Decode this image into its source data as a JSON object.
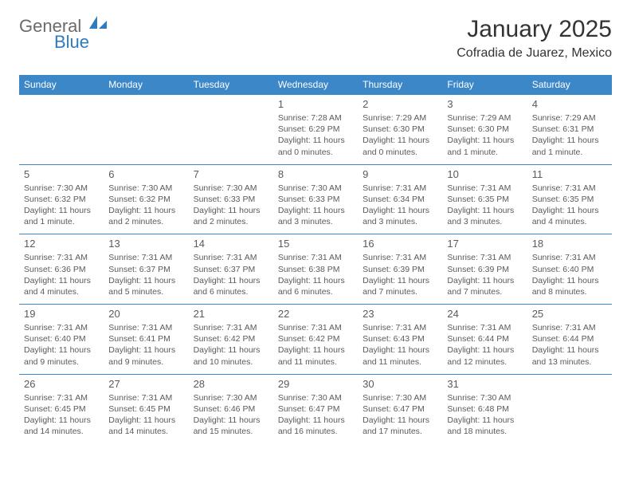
{
  "logo": {
    "part1": "General",
    "part2": "Blue"
  },
  "title": "January 2025",
  "location": "Cofradia de Juarez, Mexico",
  "colors": {
    "header_bg": "#3b87c8",
    "header_text": "#ffffff",
    "border": "#3b87c8",
    "text": "#5a5a5a",
    "logo_gray": "#6b6b6b",
    "logo_blue": "#2f7bbf",
    "background": "#ffffff"
  },
  "dayHeaders": [
    "Sunday",
    "Monday",
    "Tuesday",
    "Wednesday",
    "Thursday",
    "Friday",
    "Saturday"
  ],
  "weeks": [
    [
      null,
      null,
      null,
      {
        "n": "1",
        "sr": "7:28 AM",
        "ss": "6:29 PM",
        "dl": "11 hours and 0 minutes."
      },
      {
        "n": "2",
        "sr": "7:29 AM",
        "ss": "6:30 PM",
        "dl": "11 hours and 0 minutes."
      },
      {
        "n": "3",
        "sr": "7:29 AM",
        "ss": "6:30 PM",
        "dl": "11 hours and 1 minute."
      },
      {
        "n": "4",
        "sr": "7:29 AM",
        "ss": "6:31 PM",
        "dl": "11 hours and 1 minute."
      }
    ],
    [
      {
        "n": "5",
        "sr": "7:30 AM",
        "ss": "6:32 PM",
        "dl": "11 hours and 1 minute."
      },
      {
        "n": "6",
        "sr": "7:30 AM",
        "ss": "6:32 PM",
        "dl": "11 hours and 2 minutes."
      },
      {
        "n": "7",
        "sr": "7:30 AM",
        "ss": "6:33 PM",
        "dl": "11 hours and 2 minutes."
      },
      {
        "n": "8",
        "sr": "7:30 AM",
        "ss": "6:33 PM",
        "dl": "11 hours and 3 minutes."
      },
      {
        "n": "9",
        "sr": "7:31 AM",
        "ss": "6:34 PM",
        "dl": "11 hours and 3 minutes."
      },
      {
        "n": "10",
        "sr": "7:31 AM",
        "ss": "6:35 PM",
        "dl": "11 hours and 3 minutes."
      },
      {
        "n": "11",
        "sr": "7:31 AM",
        "ss": "6:35 PM",
        "dl": "11 hours and 4 minutes."
      }
    ],
    [
      {
        "n": "12",
        "sr": "7:31 AM",
        "ss": "6:36 PM",
        "dl": "11 hours and 4 minutes."
      },
      {
        "n": "13",
        "sr": "7:31 AM",
        "ss": "6:37 PM",
        "dl": "11 hours and 5 minutes."
      },
      {
        "n": "14",
        "sr": "7:31 AM",
        "ss": "6:37 PM",
        "dl": "11 hours and 6 minutes."
      },
      {
        "n": "15",
        "sr": "7:31 AM",
        "ss": "6:38 PM",
        "dl": "11 hours and 6 minutes."
      },
      {
        "n": "16",
        "sr": "7:31 AM",
        "ss": "6:39 PM",
        "dl": "11 hours and 7 minutes."
      },
      {
        "n": "17",
        "sr": "7:31 AM",
        "ss": "6:39 PM",
        "dl": "11 hours and 7 minutes."
      },
      {
        "n": "18",
        "sr": "7:31 AM",
        "ss": "6:40 PM",
        "dl": "11 hours and 8 minutes."
      }
    ],
    [
      {
        "n": "19",
        "sr": "7:31 AM",
        "ss": "6:40 PM",
        "dl": "11 hours and 9 minutes."
      },
      {
        "n": "20",
        "sr": "7:31 AM",
        "ss": "6:41 PM",
        "dl": "11 hours and 9 minutes."
      },
      {
        "n": "21",
        "sr": "7:31 AM",
        "ss": "6:42 PM",
        "dl": "11 hours and 10 minutes."
      },
      {
        "n": "22",
        "sr": "7:31 AM",
        "ss": "6:42 PM",
        "dl": "11 hours and 11 minutes."
      },
      {
        "n": "23",
        "sr": "7:31 AM",
        "ss": "6:43 PM",
        "dl": "11 hours and 11 minutes."
      },
      {
        "n": "24",
        "sr": "7:31 AM",
        "ss": "6:44 PM",
        "dl": "11 hours and 12 minutes."
      },
      {
        "n": "25",
        "sr": "7:31 AM",
        "ss": "6:44 PM",
        "dl": "11 hours and 13 minutes."
      }
    ],
    [
      {
        "n": "26",
        "sr": "7:31 AM",
        "ss": "6:45 PM",
        "dl": "11 hours and 14 minutes."
      },
      {
        "n": "27",
        "sr": "7:31 AM",
        "ss": "6:45 PM",
        "dl": "11 hours and 14 minutes."
      },
      {
        "n": "28",
        "sr": "7:30 AM",
        "ss": "6:46 PM",
        "dl": "11 hours and 15 minutes."
      },
      {
        "n": "29",
        "sr": "7:30 AM",
        "ss": "6:47 PM",
        "dl": "11 hours and 16 minutes."
      },
      {
        "n": "30",
        "sr": "7:30 AM",
        "ss": "6:47 PM",
        "dl": "11 hours and 17 minutes."
      },
      {
        "n": "31",
        "sr": "7:30 AM",
        "ss": "6:48 PM",
        "dl": "11 hours and 18 minutes."
      },
      null
    ]
  ],
  "labels": {
    "sunrise": "Sunrise:",
    "sunset": "Sunset:",
    "daylight": "Daylight:"
  }
}
